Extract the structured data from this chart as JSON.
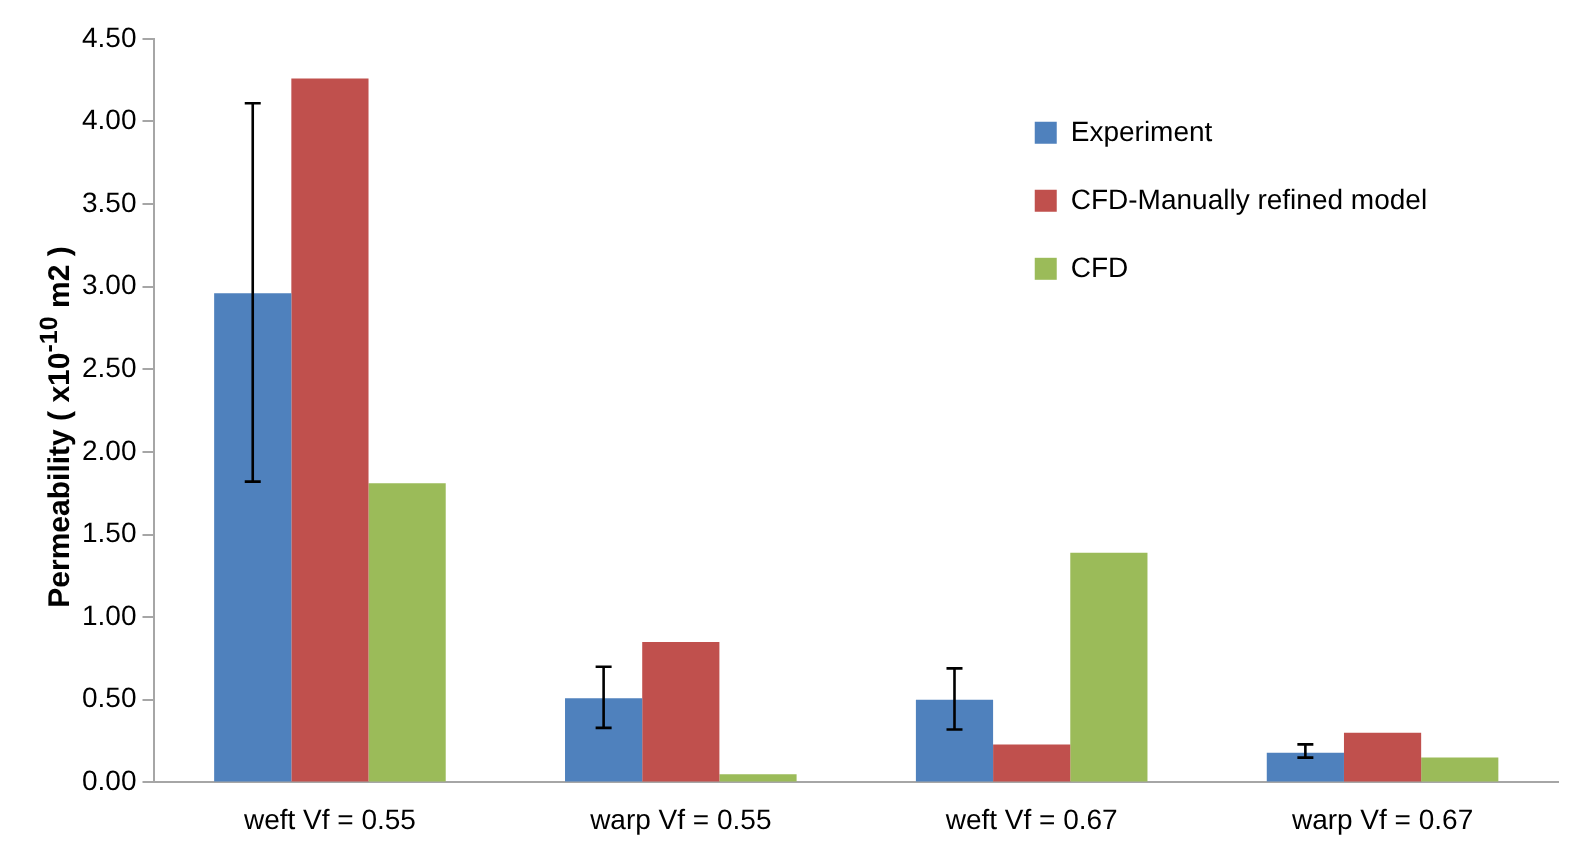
{
  "chart_data": {
    "type": "bar",
    "ylabel": "Permeability ( x10$^{-10}$ m2 )",
    "categories": [
      "weft Vf = 0.55",
      "warp Vf = 0.55",
      "weft Vf = 0.67",
      "warp Vf = 0.67"
    ],
    "series": [
      {
        "name": "Experiment",
        "color": "#4f81bd",
        "values": [
          2.96,
          0.51,
          0.5,
          0.18
        ],
        "errors": [
          [
            1.82,
            4.11
          ],
          [
            0.33,
            0.7
          ],
          [
            0.32,
            0.69
          ],
          [
            0.15,
            0.23
          ]
        ]
      },
      {
        "name": "CFD-Manually refined model",
        "color": "#c0504d",
        "values": [
          4.26,
          0.85,
          0.23,
          0.3
        ]
      },
      {
        "name": "CFD",
        "color": "#9bbb59",
        "values": [
          1.81,
          0.05,
          1.39,
          0.15
        ]
      }
    ],
    "ylim": [
      0,
      4.5
    ],
    "yticks": [
      {
        "value": 0,
        "label": "0.00"
      },
      {
        "value": 0.5,
        "label": "0.50"
      },
      {
        "value": 1,
        "label": "1.00"
      },
      {
        "value": 1.5,
        "label": "1.50"
      },
      {
        "value": 2,
        "label": "2.00"
      },
      {
        "value": 2.5,
        "label": "2.50"
      },
      {
        "value": 3,
        "label": "3.00"
      },
      {
        "value": 3.5,
        "label": "3.50"
      },
      {
        "value": 4,
        "label": "4.00"
      },
      {
        "value": 4.5,
        "label": "4.50"
      }
    ],
    "grid": false,
    "legend": "top right"
  }
}
